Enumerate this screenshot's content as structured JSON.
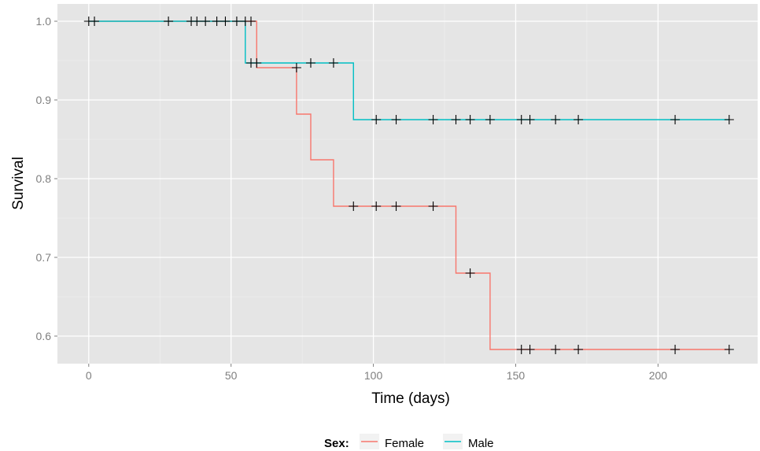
{
  "chart_data": {
    "type": "line",
    "subtype": "step",
    "xlabel": "Time (days)",
    "ylabel": "Survival",
    "xlim": [
      -11,
      235
    ],
    "ylim": [
      0.565,
      1.022
    ],
    "xticks": [
      0,
      50,
      100,
      150,
      200
    ],
    "xtick_labels": [
      "0",
      "50",
      "100",
      "150",
      "200"
    ],
    "yticks": [
      0.6,
      0.7,
      0.8,
      0.9,
      1.0
    ],
    "ytick_labels": [
      "0.6",
      "0.7",
      "0.8",
      "0.9",
      "1.0"
    ],
    "grid": true,
    "legend": {
      "title": "Sex:",
      "position": "bottom",
      "entries": [
        "Female",
        "Male"
      ]
    },
    "series": [
      {
        "name": "Female",
        "color": "#F8766D",
        "steps": [
          [
            0,
            1.0
          ],
          [
            59,
            0.941
          ],
          [
            73,
            0.882
          ],
          [
            78,
            0.824
          ],
          [
            86,
            0.765
          ],
          [
            129,
            0.68
          ],
          [
            141,
            0.583
          ]
        ],
        "end_x": 225,
        "censored": [
          [
            0,
            1.0
          ],
          [
            2,
            1.0
          ],
          [
            28,
            1.0
          ],
          [
            36,
            1.0
          ],
          [
            38,
            1.0
          ],
          [
            41,
            1.0
          ],
          [
            45,
            1.0
          ],
          [
            48,
            1.0
          ],
          [
            52,
            1.0
          ],
          [
            55,
            1.0
          ],
          [
            57,
            1.0
          ],
          [
            73,
            0.941
          ],
          [
            93,
            0.765
          ],
          [
            101,
            0.765
          ],
          [
            108,
            0.765
          ],
          [
            121,
            0.765
          ],
          [
            134,
            0.68
          ],
          [
            152,
            0.583
          ],
          [
            155,
            0.583
          ],
          [
            164,
            0.583
          ],
          [
            172,
            0.583
          ],
          [
            206,
            0.583
          ],
          [
            225,
            0.583
          ]
        ]
      },
      {
        "name": "Male",
        "color": "#00BFC4",
        "steps": [
          [
            0,
            1.0
          ],
          [
            55,
            0.947
          ],
          [
            93,
            0.875
          ]
        ],
        "end_x": 225,
        "censored": [
          [
            57,
            0.947
          ],
          [
            59,
            0.947
          ],
          [
            78,
            0.947
          ],
          [
            86,
            0.947
          ],
          [
            101,
            0.875
          ],
          [
            108,
            0.875
          ],
          [
            121,
            0.875
          ],
          [
            129,
            0.875
          ],
          [
            134,
            0.875
          ],
          [
            141,
            0.875
          ],
          [
            152,
            0.875
          ],
          [
            155,
            0.875
          ],
          [
            164,
            0.875
          ],
          [
            172,
            0.875
          ],
          [
            206,
            0.875
          ],
          [
            225,
            0.875
          ]
        ]
      }
    ]
  }
}
